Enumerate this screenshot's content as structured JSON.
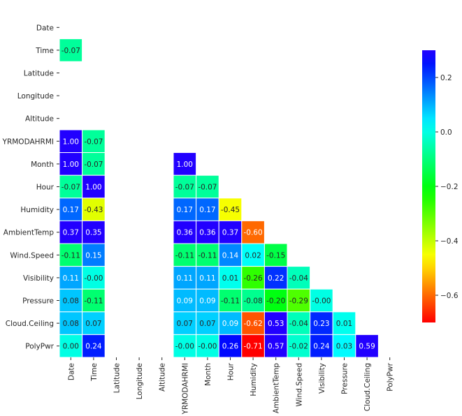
{
  "chart_data": {
    "type": "heatmap",
    "title": "",
    "xlabel": "",
    "ylabel": "",
    "labels": [
      "Date",
      "Time",
      "Latitude",
      "Longitude",
      "Altitude",
      "YRMODAHRMI",
      "Month",
      "Hour",
      "Humidity",
      "AmbientTemp",
      "Wind.Speed",
      "Visibility",
      "Pressure",
      "Cloud.Ceiling",
      "PolyPwr"
    ],
    "cells": [
      {
        "row": 1,
        "col": 0,
        "value": -0.07,
        "text": "-0.07"
      },
      {
        "row": 5,
        "col": 0,
        "value": 1.0,
        "text": "1.00"
      },
      {
        "row": 5,
        "col": 1,
        "value": -0.07,
        "text": "-0.07"
      },
      {
        "row": 6,
        "col": 0,
        "value": 1.0,
        "text": "1.00"
      },
      {
        "row": 6,
        "col": 1,
        "value": -0.07,
        "text": "-0.07"
      },
      {
        "row": 6,
        "col": 5,
        "value": 1.0,
        "text": "1.00"
      },
      {
        "row": 7,
        "col": 0,
        "value": -0.07,
        "text": "-0.07"
      },
      {
        "row": 7,
        "col": 1,
        "value": 1.0,
        "text": "1.00"
      },
      {
        "row": 7,
        "col": 5,
        "value": -0.07,
        "text": "-0.07"
      },
      {
        "row": 7,
        "col": 6,
        "value": -0.07,
        "text": "-0.07"
      },
      {
        "row": 8,
        "col": 0,
        "value": 0.17,
        "text": "0.17"
      },
      {
        "row": 8,
        "col": 1,
        "value": -0.43,
        "text": "-0.43"
      },
      {
        "row": 8,
        "col": 5,
        "value": 0.17,
        "text": "0.17"
      },
      {
        "row": 8,
        "col": 6,
        "value": 0.17,
        "text": "0.17"
      },
      {
        "row": 8,
        "col": 7,
        "value": -0.45,
        "text": "-0.45"
      },
      {
        "row": 9,
        "col": 0,
        "value": 0.37,
        "text": "0.37"
      },
      {
        "row": 9,
        "col": 1,
        "value": 0.35,
        "text": "0.35"
      },
      {
        "row": 9,
        "col": 5,
        "value": 0.36,
        "text": "0.36"
      },
      {
        "row": 9,
        "col": 6,
        "value": 0.36,
        "text": "0.36"
      },
      {
        "row": 9,
        "col": 7,
        "value": 0.37,
        "text": "0.37"
      },
      {
        "row": 9,
        "col": 8,
        "value": -0.6,
        "text": "-0.60"
      },
      {
        "row": 10,
        "col": 0,
        "value": -0.11,
        "text": "-0.11"
      },
      {
        "row": 10,
        "col": 1,
        "value": 0.15,
        "text": "0.15"
      },
      {
        "row": 10,
        "col": 5,
        "value": -0.11,
        "text": "-0.11"
      },
      {
        "row": 10,
        "col": 6,
        "value": -0.11,
        "text": "-0.11"
      },
      {
        "row": 10,
        "col": 7,
        "value": 0.14,
        "text": "0.14"
      },
      {
        "row": 10,
        "col": 8,
        "value": 0.02,
        "text": "0.02"
      },
      {
        "row": 10,
        "col": 9,
        "value": -0.15,
        "text": "-0.15"
      },
      {
        "row": 11,
        "col": 0,
        "value": 0.11,
        "text": "0.11"
      },
      {
        "row": 11,
        "col": 1,
        "value": -0.0,
        "text": "-0.00"
      },
      {
        "row": 11,
        "col": 5,
        "value": 0.11,
        "text": "0.11"
      },
      {
        "row": 11,
        "col": 6,
        "value": 0.11,
        "text": "0.11"
      },
      {
        "row": 11,
        "col": 7,
        "value": 0.01,
        "text": "0.01"
      },
      {
        "row": 11,
        "col": 8,
        "value": -0.26,
        "text": "-0.26"
      },
      {
        "row": 11,
        "col": 9,
        "value": 0.22,
        "text": "0.22"
      },
      {
        "row": 11,
        "col": 10,
        "value": -0.04,
        "text": "-0.04"
      },
      {
        "row": 12,
        "col": 0,
        "value": 0.08,
        "text": "0.08"
      },
      {
        "row": 12,
        "col": 1,
        "value": -0.11,
        "text": "-0.11"
      },
      {
        "row": 12,
        "col": 5,
        "value": 0.09,
        "text": "0.09"
      },
      {
        "row": 12,
        "col": 6,
        "value": 0.09,
        "text": "0.09"
      },
      {
        "row": 12,
        "col": 7,
        "value": -0.11,
        "text": "-0.11"
      },
      {
        "row": 12,
        "col": 8,
        "value": -0.08,
        "text": "-0.08"
      },
      {
        "row": 12,
        "col": 9,
        "value": -0.2,
        "text": "-0.20"
      },
      {
        "row": 12,
        "col": 10,
        "value": -0.29,
        "text": "-0.29"
      },
      {
        "row": 12,
        "col": 11,
        "value": -0.0,
        "text": "-0.00"
      },
      {
        "row": 13,
        "col": 0,
        "value": 0.08,
        "text": "0.08"
      },
      {
        "row": 13,
        "col": 1,
        "value": 0.07,
        "text": "0.07"
      },
      {
        "row": 13,
        "col": 5,
        "value": 0.07,
        "text": "0.07"
      },
      {
        "row": 13,
        "col": 6,
        "value": 0.07,
        "text": "0.07"
      },
      {
        "row": 13,
        "col": 7,
        "value": 0.09,
        "text": "0.09"
      },
      {
        "row": 13,
        "col": 8,
        "value": -0.62,
        "text": "-0.62"
      },
      {
        "row": 13,
        "col": 9,
        "value": 0.53,
        "text": "0.53"
      },
      {
        "row": 13,
        "col": 10,
        "value": -0.04,
        "text": "-0.04"
      },
      {
        "row": 13,
        "col": 11,
        "value": 0.23,
        "text": "0.23"
      },
      {
        "row": 13,
        "col": 12,
        "value": 0.01,
        "text": "0.01"
      },
      {
        "row": 14,
        "col": 0,
        "value": 0.0,
        "text": "0.00"
      },
      {
        "row": 14,
        "col": 1,
        "value": 0.24,
        "text": "0.24"
      },
      {
        "row": 14,
        "col": 5,
        "value": -0.0,
        "text": "-0.00"
      },
      {
        "row": 14,
        "col": 6,
        "value": -0.0,
        "text": "-0.00"
      },
      {
        "row": 14,
        "col": 7,
        "value": 0.26,
        "text": "0.26"
      },
      {
        "row": 14,
        "col": 8,
        "value": -0.71,
        "text": "-0.71"
      },
      {
        "row": 14,
        "col": 9,
        "value": 0.57,
        "text": "0.57"
      },
      {
        "row": 14,
        "col": 10,
        "value": -0.02,
        "text": "-0.02"
      },
      {
        "row": 14,
        "col": 11,
        "value": 0.24,
        "text": "0.24"
      },
      {
        "row": 14,
        "col": 12,
        "value": 0.03,
        "text": "0.03"
      },
      {
        "row": 14,
        "col": 13,
        "value": 0.59,
        "text": "0.59"
      }
    ],
    "colorbar": {
      "colormap": "gist_rainbow",
      "vmin": -0.7,
      "vmax": 0.3,
      "ticks": [
        0.2,
        0.0,
        -0.2,
        -0.4,
        -0.6
      ],
      "tick_labels": [
        "0.2",
        "0.0",
        "−0.2",
        "−0.4",
        "−0.6"
      ],
      "placement": "right"
    },
    "annotations": true,
    "grid": false
  }
}
